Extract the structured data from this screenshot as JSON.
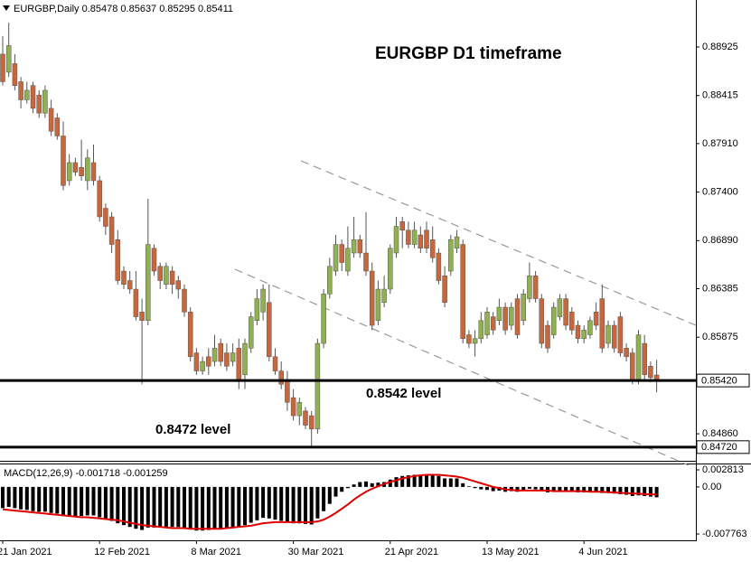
{
  "chart_data": [
    {
      "type": "candlestick",
      "header": "EURGBP,Daily 0.85478 0.85637 0.85295 0.85411",
      "title": "EURGBP D1 timeframe",
      "categories": [
        "21 Jan 2021",
        null,
        null,
        null,
        null,
        null,
        null,
        null,
        null,
        null,
        null,
        null,
        null,
        null,
        null,
        null,
        "12 Feb 2021",
        null,
        null,
        null,
        null,
        null,
        null,
        null,
        null,
        null,
        null,
        null,
        null,
        null,
        null,
        null,
        "8 Mar 2021",
        null,
        null,
        null,
        null,
        null,
        null,
        null,
        null,
        null,
        null,
        null,
        null,
        null,
        null,
        null,
        "30 Mar 2021",
        null,
        null,
        null,
        null,
        null,
        null,
        null,
        null,
        null,
        null,
        null,
        null,
        null,
        null,
        null,
        "21 Apr 2021",
        null,
        null,
        null,
        null,
        null,
        null,
        null,
        null,
        null,
        null,
        null,
        null,
        null,
        null,
        null,
        "13 May 2021",
        null,
        null,
        null,
        null,
        null,
        null,
        null,
        null,
        null,
        null,
        null,
        null,
        null,
        null,
        null,
        "4 Jun 2021",
        null,
        null,
        null,
        null,
        null,
        null,
        null,
        null,
        null,
        null,
        null,
        null
      ],
      "open": [
        0.8885,
        0.8866,
        0.8875,
        0.8856,
        0.8837,
        0.8852,
        0.8842,
        0.8823,
        0.8828,
        0.8818,
        0.8799,
        0.8752,
        0.8771,
        0.8766,
        0.8752,
        0.8771,
        0.8752,
        0.8723,
        0.8714,
        0.869,
        0.8657,
        0.8647,
        0.8638,
        0.8614,
        0.8605,
        0.8681,
        0.8662,
        0.8643,
        0.8657,
        0.8647,
        0.8638,
        0.8614,
        0.8571,
        0.8552,
        0.8567,
        0.8562,
        0.8581,
        0.8571,
        0.8562,
        0.8576,
        0.8548,
        0.8576,
        0.8605,
        0.8614,
        0.8624,
        0.8567,
        0.8552,
        0.8543,
        0.8524,
        0.8505,
        0.851,
        0.8505,
        0.8491,
        0.8581,
        0.8633,
        0.8657,
        0.8685,
        0.8657,
        0.8676,
        0.869,
        0.8676,
        0.8657,
        0.8605,
        0.8624,
        0.8638,
        0.8676,
        0.8709,
        0.87,
        0.8685,
        0.8695,
        0.87,
        0.869,
        0.8676,
        0.8652,
        0.8657,
        0.8681,
        0.8685,
        0.859,
        0.8581,
        0.8586,
        0.859,
        0.8609,
        0.8605,
        0.8619,
        0.86,
        0.8628,
        0.8605,
        0.8628,
        0.8652,
        0.8628,
        0.86,
        0.859,
        0.8609,
        0.8628,
        0.8614,
        0.86,
        0.8586,
        0.859,
        0.8614,
        0.8628,
        0.8581,
        0.86,
        0.8609,
        0.8576,
        0.8571,
        0.8543,
        0.8581,
        0.8557,
        0.85478
      ],
      "high": [
        0.8904,
        0.8918,
        0.8885,
        0.8861,
        0.8856,
        0.8856,
        0.8847,
        0.8852,
        0.8837,
        0.8823,
        0.8814,
        0.878,
        0.8776,
        0.8795,
        0.8785,
        0.879,
        0.8757,
        0.8728,
        0.8719,
        0.87,
        0.8662,
        0.8657,
        0.8657,
        0.8628,
        0.8733,
        0.8685,
        0.8666,
        0.8666,
        0.8662,
        0.8652,
        0.8643,
        0.8619,
        0.8576,
        0.8567,
        0.8576,
        0.859,
        0.8586,
        0.8581,
        0.8581,
        0.8586,
        0.8586,
        0.8614,
        0.8638,
        0.8643,
        0.8643,
        0.8576,
        0.8562,
        0.8552,
        0.8533,
        0.8524,
        0.8514,
        0.851,
        0.8586,
        0.8638,
        0.8671,
        0.8695,
        0.869,
        0.8704,
        0.8714,
        0.8695,
        0.8719,
        0.8666,
        0.8647,
        0.8652,
        0.8685,
        0.8714,
        0.8714,
        0.8709,
        0.8709,
        0.8704,
        0.8709,
        0.8704,
        0.8681,
        0.8662,
        0.8695,
        0.87,
        0.869,
        0.8595,
        0.8595,
        0.8614,
        0.8619,
        0.8614,
        0.8628,
        0.8624,
        0.8624,
        0.8633,
        0.8638,
        0.8666,
        0.8657,
        0.8633,
        0.8605,
        0.8624,
        0.8633,
        0.8633,
        0.8619,
        0.8605,
        0.86,
        0.8609,
        0.8624,
        0.8643,
        0.8605,
        0.8605,
        0.8614,
        0.8581,
        0.8576,
        0.8595,
        0.859,
        0.8562,
        0.85637
      ],
      "low": [
        0.8852,
        0.8861,
        0.8847,
        0.8828,
        0.8833,
        0.8823,
        0.8818,
        0.8818,
        0.8799,
        0.8795,
        0.8742,
        0.8747,
        0.8757,
        0.8752,
        0.8742,
        0.8747,
        0.8709,
        0.8695,
        0.8676,
        0.8643,
        0.8638,
        0.8633,
        0.8605,
        0.8538,
        0.86,
        0.8652,
        0.8638,
        0.8638,
        0.8633,
        0.8628,
        0.8609,
        0.8562,
        0.8548,
        0.8548,
        0.8548,
        0.8557,
        0.8557,
        0.8552,
        0.8557,
        0.8533,
        0.8533,
        0.8571,
        0.86,
        0.8605,
        0.8562,
        0.8548,
        0.8533,
        0.851,
        0.85,
        0.8495,
        0.8491,
        0.8472,
        0.8486,
        0.8576,
        0.8628,
        0.8652,
        0.8657,
        0.8652,
        0.8671,
        0.8671,
        0.8652,
        0.8595,
        0.86,
        0.8619,
        0.8633,
        0.8671,
        0.8681,
        0.8681,
        0.8681,
        0.8676,
        0.8676,
        0.8666,
        0.8643,
        0.8619,
        0.8652,
        0.8676,
        0.8581,
        0.8576,
        0.8567,
        0.8581,
        0.8586,
        0.859,
        0.86,
        0.859,
        0.8595,
        0.8586,
        0.86,
        0.8624,
        0.8624,
        0.8576,
        0.8571,
        0.8586,
        0.8605,
        0.8595,
        0.859,
        0.8581,
        0.8581,
        0.8586,
        0.8595,
        0.8571,
        0.8576,
        0.8571,
        0.8567,
        0.8562,
        0.8538,
        0.8538,
        0.8543,
        0.854,
        0.85295
      ],
      "close": [
        0.8856,
        0.8894,
        0.8852,
        0.8837,
        0.8847,
        0.8828,
        0.8823,
        0.8847,
        0.8804,
        0.8799,
        0.8747,
        0.8771,
        0.8761,
        0.8757,
        0.8776,
        0.8752,
        0.8714,
        0.8704,
        0.8685,
        0.8647,
        0.8643,
        0.8638,
        0.8609,
        0.8605,
        0.8685,
        0.8657,
        0.8647,
        0.8662,
        0.8643,
        0.8638,
        0.8614,
        0.8567,
        0.8552,
        0.8562,
        0.8557,
        0.8576,
        0.8562,
        0.8557,
        0.8571,
        0.8543,
        0.8581,
        0.8609,
        0.8628,
        0.8638,
        0.8567,
        0.8552,
        0.8538,
        0.8519,
        0.8505,
        0.8519,
        0.8495,
        0.8491,
        0.8581,
        0.8633,
        0.8662,
        0.8685,
        0.8666,
        0.8681,
        0.869,
        0.8676,
        0.8657,
        0.86,
        0.8638,
        0.8638,
        0.8681,
        0.8704,
        0.87,
        0.8685,
        0.87,
        0.8681,
        0.8681,
        0.8671,
        0.8647,
        0.8624,
        0.869,
        0.8693,
        0.8586,
        0.8581,
        0.8586,
        0.8605,
        0.8614,
        0.8595,
        0.8619,
        0.8595,
        0.8619,
        0.859,
        0.8633,
        0.8652,
        0.8628,
        0.8581,
        0.8576,
        0.8619,
        0.8628,
        0.86,
        0.8595,
        0.8586,
        0.8595,
        0.8605,
        0.86,
        0.8576,
        0.86,
        0.8576,
        0.8571,
        0.8567,
        0.8543,
        0.859,
        0.8548,
        0.8545,
        0.85411
      ],
      "up_color": "#8fb150",
      "down_color": "#c9673c",
      "ylim": [
        0.84576,
        0.89419
      ],
      "yticks": [
        0.88925,
        0.88415,
        {
          "value": 0.8791,
          "label": "0.87910"
        },
        {
          "value": 0.874,
          "label": "0.87400"
        },
        {
          "value": 0.8689,
          "label": "0.86890"
        },
        0.86385,
        0.85875,
        {
          "value": 0.8486,
          "label": "0.84860"
        }
      ],
      "levels": [
        {
          "value": 0.8542,
          "label": "0.85420",
          "annotation": "0.8542 level"
        },
        {
          "value": 0.8472,
          "label": "0.84720",
          "annotation": "0.8472 level"
        }
      ]
    },
    {
      "type": "macd",
      "header": "MACD(12,26,9) -0.001718 -0.001259",
      "ylim": [
        -0.007763,
        0.002813
      ],
      "yticks": [
        0.002813,
        {
          "value": 0,
          "label": "0.00"
        },
        -0.007763
      ],
      "series": [
        {
          "style": "histogram",
          "color": "#000000",
          "values": [
            -0.0035,
            -0.0033,
            -0.0035,
            -0.0037,
            -0.0038,
            -0.004,
            -0.0041,
            -0.0041,
            -0.0043,
            -0.0044,
            -0.0048,
            -0.0048,
            -0.0048,
            -0.0048,
            -0.0047,
            -0.0047,
            -0.005,
            -0.0053,
            -0.0056,
            -0.006,
            -0.0063,
            -0.0066,
            -0.0069,
            -0.0071,
            -0.0067,
            -0.0067,
            -0.0067,
            -0.0066,
            -0.0066,
            -0.0066,
            -0.0067,
            -0.007,
            -0.0072,
            -0.0072,
            -0.0071,
            -0.0069,
            -0.0068,
            -0.0067,
            -0.0066,
            -0.0066,
            -0.0063,
            -0.0059,
            -0.0055,
            -0.0051,
            -0.0052,
            -0.0054,
            -0.0056,
            -0.0058,
            -0.006,
            -0.006,
            -0.0061,
            -0.0062,
            -0.0052,
            -0.004,
            -0.0028,
            -0.0016,
            -0.0008,
            -0.0002,
            0.0004,
            0.0008,
            0.0009,
            0.0006,
            0.0007,
            0.0008,
            0.0012,
            0.0016,
            0.0018,
            0.0019,
            0.002,
            0.002,
            0.002,
            0.002,
            0.0018,
            0.0014,
            0.0014,
            0.0014,
            0.0006,
            0.0001,
            -0.0002,
            -0.0004,
            -0.0005,
            -0.0007,
            -0.0006,
            -0.0008,
            -0.0007,
            -0.0008,
            -0.0006,
            -0.0003,
            -0.0004,
            -0.0007,
            -0.0009,
            -0.0008,
            -0.0006,
            -0.0007,
            -0.0008,
            -0.0009,
            -0.0009,
            -0.0008,
            -0.0008,
            -0.001,
            -0.001,
            -0.0011,
            -0.0012,
            -0.0013,
            -0.0015,
            -0.0014,
            -0.0015,
            -0.0016,
            -0.001718
          ]
        },
        {
          "style": "line",
          "color": "#e00000",
          "values": [
            -0.0037,
            -0.0038,
            -0.0039,
            -0.004,
            -0.0041,
            -0.0042,
            -0.0043,
            -0.0044,
            -0.0045,
            -0.0046,
            -0.0047,
            -0.0048,
            -0.0049,
            -0.005,
            -0.005,
            -0.0051,
            -0.0052,
            -0.0053,
            -0.0054,
            -0.0055,
            -0.0057,
            -0.0059,
            -0.0061,
            -0.0063,
            -0.0064,
            -0.0065,
            -0.0066,
            -0.0067,
            -0.0068,
            -0.0068,
            -0.0068,
            -0.0069,
            -0.0069,
            -0.0069,
            -0.0069,
            -0.0069,
            -0.0069,
            -0.0068,
            -0.0067,
            -0.0066,
            -0.0065,
            -0.0064,
            -0.0062,
            -0.006,
            -0.0059,
            -0.0058,
            -0.0058,
            -0.0058,
            -0.0058,
            -0.0058,
            -0.0058,
            -0.0058,
            -0.0057,
            -0.0054,
            -0.0049,
            -0.0043,
            -0.0036,
            -0.0029,
            -0.0021,
            -0.0014,
            -0.0008,
            -0.0003,
            0.0001,
            0.0005,
            0.0008,
            0.0011,
            0.0014,
            0.0016,
            0.0018,
            0.0019,
            0.002,
            0.002,
            0.002,
            0.0019,
            0.0018,
            0.0017,
            0.0015,
            0.0012,
            0.0009,
            0.0006,
            0.0003,
            0.0,
            -0.0002,
            -0.0004,
            -0.0005,
            -0.0006,
            -0.0006,
            -0.0006,
            -0.0006,
            -0.0006,
            -0.0006,
            -0.0007,
            -0.0007,
            -0.0007,
            -0.0007,
            -0.0007,
            -0.0007,
            -0.0008,
            -0.0008,
            -0.0008,
            -0.0009,
            -0.0009,
            -0.001,
            -0.001,
            -0.0011,
            -0.0011,
            -0.0012,
            -0.0012,
            -0.001259
          ]
        }
      ]
    }
  ]
}
